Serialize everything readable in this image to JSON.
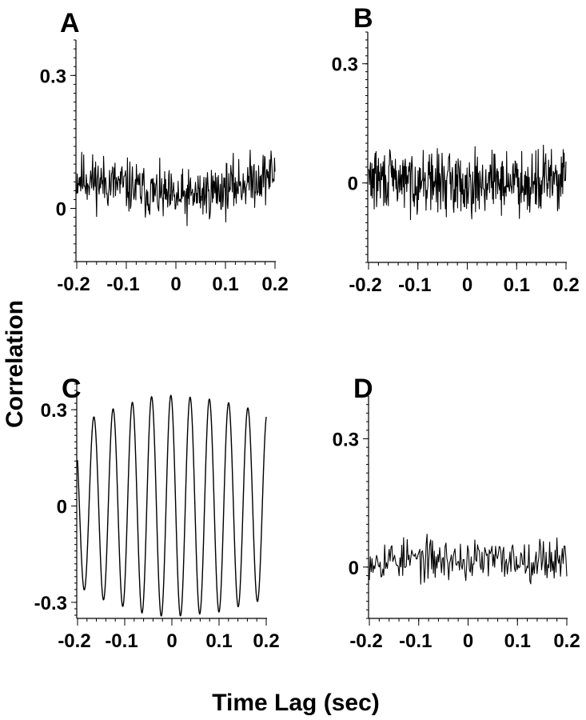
{
  "xlabel": "Time Lag (sec)",
  "ylabel": "Correlation",
  "chart_data": [
    {
      "panel": "A",
      "type": "line",
      "xlim": [
        -0.2,
        0.2
      ],
      "ylim": [
        -0.12,
        0.38
      ],
      "xticks": [
        -0.2,
        -0.1,
        0,
        0.1,
        0.2
      ],
      "xtick_labels": [
        "-0.2",
        "-0.1",
        "0",
        "0.1",
        "0.2"
      ],
      "yticks": [
        0,
        0.3
      ],
      "ytick_labels": [
        "0",
        "0.3"
      ],
      "signal": {
        "kind": "noise",
        "n": 400,
        "seed": 11,
        "amp": 0.055,
        "baseline": [
          [
            -0.2,
            0.07
          ],
          [
            -0.1,
            0.05
          ],
          [
            0.0,
            0.02
          ],
          [
            0.1,
            0.045
          ],
          [
            0.2,
            0.08
          ]
        ]
      }
    },
    {
      "panel": "B",
      "type": "line",
      "xlim": [
        -0.2,
        0.2
      ],
      "ylim": [
        -0.2,
        0.38
      ],
      "xticks": [
        -0.2,
        -0.1,
        0,
        0.1,
        0.2
      ],
      "xtick_labels": [
        "-0.2",
        "-0.1",
        "0",
        "0.1",
        "0.2"
      ],
      "yticks": [
        0,
        0.3
      ],
      "ytick_labels": [
        "0",
        "0.3"
      ],
      "signal": {
        "kind": "noise",
        "n": 420,
        "seed": 29,
        "amp": 0.07,
        "baseline": [
          [
            -0.2,
            0.01
          ],
          [
            0.0,
            0.0
          ],
          [
            0.2,
            0.01
          ]
        ]
      }
    },
    {
      "panel": "C",
      "type": "line",
      "xlim": [
        -0.2,
        0.2
      ],
      "ylim": [
        -0.35,
        0.38
      ],
      "xticks": [
        -0.2,
        -0.1,
        0,
        0.1,
        0.2
      ],
      "xtick_labels": [
        "-0.2",
        "-0.1",
        "0",
        "0.1",
        "0.2"
      ],
      "yticks": [
        -0.3,
        0,
        0.3
      ],
      "ytick_labels": [
        "-0.3",
        "0",
        "0.3"
      ],
      "signal": {
        "kind": "sine",
        "n": 600,
        "freq_hz": 24.5,
        "phase_ref_x": -0.043,
        "amp_profile": [
          [
            -0.2,
            0.25
          ],
          [
            -0.15,
            0.29
          ],
          [
            -0.05,
            0.34
          ],
          [
            0.0,
            0.345
          ],
          [
            0.1,
            0.33
          ],
          [
            0.2,
            0.29
          ]
        ]
      }
    },
    {
      "panel": "D",
      "type": "line",
      "xlim": [
        -0.2,
        0.2
      ],
      "ylim": [
        -0.12,
        0.4
      ],
      "xticks": [
        -0.2,
        -0.1,
        0,
        0.1,
        0.2
      ],
      "xtick_labels": [
        "-0.2",
        "-0.1",
        "0",
        "0.1",
        "0.2"
      ],
      "yticks": [
        0,
        0.3
      ],
      "ytick_labels": [
        "0",
        "0.3"
      ],
      "signal": {
        "kind": "noise",
        "n": 220,
        "seed": 53,
        "amp": 0.045,
        "baseline": [
          [
            -0.2,
            0.02
          ],
          [
            0.0,
            0.015
          ],
          [
            0.2,
            0.02
          ]
        ]
      }
    }
  ]
}
